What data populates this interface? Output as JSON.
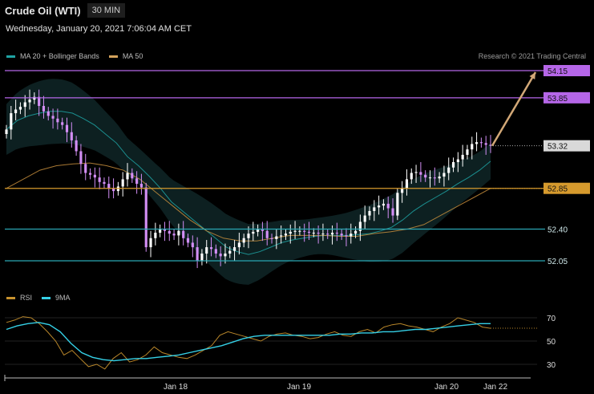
{
  "header": {
    "title": "Crude Oil (WTI)",
    "timeframe": "30 MIN"
  },
  "datetime": "Wednesday, January 20, 2021 7:06:04 AM CET",
  "credit": "Research © 2021 Trading Central",
  "legend_price": [
    {
      "label": "MA 20 + Bollinger Bands",
      "color": "#1fa3a3"
    },
    {
      "label": "MA 50",
      "color": "#d3a25c"
    }
  ],
  "legend_rsi": [
    {
      "label": "RSI",
      "color": "#c8922e"
    },
    {
      "label": "9MA",
      "color": "#35d0e6"
    }
  ],
  "colors": {
    "up": "#ffffff",
    "down": "#d38ef5",
    "purple": "#b566e8",
    "teal": "#2aa7b4",
    "orange": "#d69a2d"
  },
  "chart_data": [
    {
      "type": "candlestick",
      "ylim": [
        51.7,
        54.35
      ],
      "x_ticks": [
        "Jan 18",
        "Jan 19",
        "Jan 20",
        "Jan 22"
      ],
      "levels": [
        {
          "value": 54.15,
          "label": "54.15",
          "color": "#b566e8"
        },
        {
          "value": 53.85,
          "label": "53.85",
          "color": "#b566e8"
        },
        {
          "value": 52.85,
          "label": "52.85",
          "color": "#d69a2d"
        },
        {
          "value": 52.4,
          "label": "52.40",
          "color": "#2aa7b4"
        },
        {
          "value": 52.05,
          "label": "52.05",
          "color": "#2aa7b4"
        }
      ],
      "last_price": {
        "value": 53.32,
        "label": "53.32"
      },
      "series": [
        {
          "name": "price",
          "values": [
            53.5,
            53.68,
            53.72,
            53.75,
            53.8,
            53.83,
            53.86,
            53.76,
            53.7,
            53.65,
            53.62,
            53.58,
            53.55,
            53.47,
            53.38,
            53.26,
            53.12,
            53.02,
            53.0,
            52.97,
            52.92,
            52.9,
            52.85,
            52.82,
            52.87,
            52.95,
            53.02,
            52.96,
            52.9,
            52.86,
            52.2,
            52.3,
            52.36,
            52.4,
            52.38,
            52.35,
            52.33,
            52.38,
            52.3,
            52.25,
            52.2,
            52.05,
            52.13,
            52.2,
            52.18,
            52.13,
            52.1,
            52.13,
            52.16,
            52.2,
            52.25,
            52.3,
            52.35,
            52.37,
            52.4,
            52.38,
            52.3,
            52.29,
            52.32,
            52.33,
            52.35,
            52.37,
            52.38,
            52.38,
            52.37,
            52.36,
            52.36,
            52.35,
            52.35,
            52.34,
            52.36,
            52.35,
            52.33,
            52.32,
            52.35,
            52.38,
            52.48,
            52.55,
            52.6,
            52.64,
            52.66,
            52.68,
            52.63,
            52.55,
            52.8,
            52.85,
            52.95,
            53.02,
            53.03,
            53.0,
            52.97,
            52.97,
            52.96,
            52.98,
            53.02,
            53.08,
            53.14,
            53.17,
            53.22,
            53.28,
            53.34,
            53.36,
            53.35,
            53.33,
            53.32
          ]
        },
        {
          "name": "MA 20",
          "values": [
            53.5,
            53.6,
            53.65,
            53.68,
            53.7,
            53.7,
            53.68,
            53.62,
            53.55,
            53.45,
            53.35,
            53.2,
            53.1,
            52.98,
            52.85,
            52.7,
            52.6,
            52.5,
            52.4,
            52.3,
            52.2,
            52.15,
            52.12,
            52.15,
            52.2,
            52.25,
            52.28,
            52.3,
            52.32,
            52.33,
            52.33,
            52.33,
            52.34,
            52.35,
            52.38,
            52.42,
            52.5,
            52.6,
            52.68,
            52.75,
            52.82,
            52.9,
            52.97,
            53.05,
            53.15
          ]
        },
        {
          "name": "MA 50",
          "values": [
            52.85,
            52.95,
            53.05,
            53.1,
            53.12,
            53.13,
            53.1,
            53.05,
            52.95,
            52.8,
            52.65,
            52.5,
            52.38,
            52.3,
            52.27,
            52.27,
            52.3,
            52.33,
            52.33,
            52.33,
            52.32,
            52.32,
            52.35,
            52.37,
            52.4,
            52.45,
            52.55,
            52.65,
            52.75,
            52.85
          ]
        }
      ]
    },
    {
      "type": "line",
      "ylim": [
        22,
        78
      ],
      "y_ticks": [
        70,
        50,
        30
      ],
      "series": [
        {
          "name": "RSI",
          "values": [
            66,
            68,
            71,
            70,
            65,
            58,
            50,
            38,
            42,
            35,
            28,
            30,
            26,
            35,
            40,
            32,
            34,
            38,
            45,
            40,
            38,
            36,
            35,
            38,
            42,
            46,
            55,
            58,
            56,
            54,
            52,
            50,
            54,
            56,
            57,
            55,
            54,
            52,
            53,
            56,
            58,
            55,
            54,
            58,
            60,
            57,
            62,
            64,
            65,
            63,
            62,
            60,
            58,
            62,
            65,
            70,
            68,
            66,
            62,
            61
          ]
        },
        {
          "name": "9MA",
          "values": [
            60,
            63,
            65,
            66,
            64,
            58,
            48,
            40,
            36,
            34,
            33,
            34,
            35,
            35,
            36,
            37,
            38,
            40,
            42,
            44,
            46,
            49,
            52,
            54,
            55,
            55,
            55,
            55,
            55,
            55,
            55,
            56,
            56,
            57,
            57,
            58,
            58,
            59,
            60,
            60,
            61,
            62,
            63,
            64,
            65,
            65
          ]
        }
      ]
    }
  ]
}
